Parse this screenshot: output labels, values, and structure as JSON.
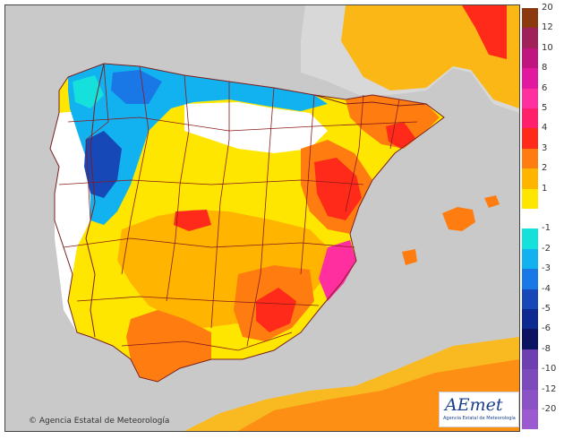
{
  "copyright": "© Agencia Estatal de Meteorología",
  "logo": {
    "name": "AEmet",
    "subtitle": "Agencia Estatal de Meteorología"
  },
  "legend": [
    {
      "label": "20",
      "color": "#8b3a10"
    },
    {
      "label": "12",
      "color": "#a0205a"
    },
    {
      "label": "10",
      "color": "#c0157f"
    },
    {
      "label": "8",
      "color": "#e0199e"
    },
    {
      "label": "6",
      "color": "#ff2fa0"
    },
    {
      "label": "5",
      "color": "#ff1f6a"
    },
    {
      "label": "4",
      "color": "#ff2a1a"
    },
    {
      "label": "3",
      "color": "#ff7d10"
    },
    {
      "label": "2",
      "color": "#ffb400"
    },
    {
      "label": "1",
      "color": "#ffe600"
    },
    {
      "label": "",
      "color": "#ffffff"
    },
    {
      "label": "-1",
      "color": "#15e0dc"
    },
    {
      "label": "-2",
      "color": "#12b2f0"
    },
    {
      "label": "-3",
      "color": "#1a78e6"
    },
    {
      "label": "-4",
      "color": "#1748b8"
    },
    {
      "label": "-5",
      "color": "#0e2a90"
    },
    {
      "label": "-6",
      "color": "#0b1460"
    },
    {
      "label": "-8",
      "color": "#6d3fb0"
    },
    {
      "label": "-10",
      "color": "#7d4abc"
    },
    {
      "label": "-12",
      "color": "#8a52c4"
    },
    {
      "label": "-20",
      "color": "#9c5ad0"
    }
  ],
  "colors": {
    "sea": "#c9c9c9",
    "land_other": "#d8d8d8",
    "boundary": "#8b1a1a"
  }
}
